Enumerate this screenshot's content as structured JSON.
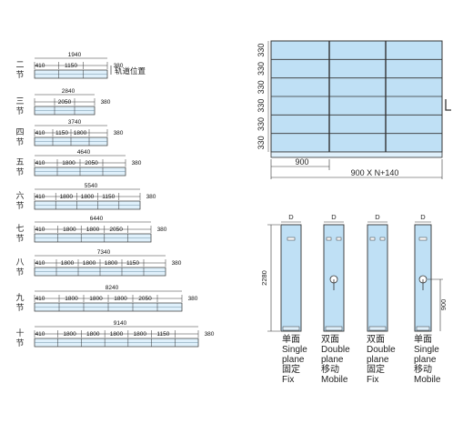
{
  "left_rail": {
    "rail_note": "轨道位置",
    "rows": [
      {
        "label": "二节",
        "total": "1940",
        "segments": [
          "410",
          "1150",
          "380"
        ]
      },
      {
        "label": "三节",
        "total": "2840",
        "segments": [
          "",
          "2050",
          "380"
        ]
      },
      {
        "label": "四节",
        "total": "3740",
        "segments": [
          "410",
          "1150",
          "1800",
          "380"
        ]
      },
      {
        "label": "五节",
        "total": "4640",
        "segments": [
          "410",
          "1800",
          "2050",
          "380"
        ]
      },
      {
        "label": "六节",
        "total": "5540",
        "segments": [
          "410",
          "1800",
          "1800",
          "1150",
          "380"
        ]
      },
      {
        "label": "七节",
        "total": "6440",
        "segments": [
          "410",
          "1800",
          "1800",
          "2050",
          "380"
        ]
      },
      {
        "label": "八节",
        "total": "7340",
        "segments": [
          "410",
          "1800",
          "1800",
          "1800",
          "1150",
          "380"
        ]
      },
      {
        "label": "九节",
        "total": "8240",
        "segments": [
          "410",
          "1800",
          "1800",
          "1800",
          "2050",
          "380"
        ]
      },
      {
        "label": "十节",
        "total": "9140",
        "segments": [
          "410",
          "1800",
          "1800",
          "1800",
          "1800",
          "1150",
          "380"
        ]
      }
    ]
  },
  "front_view": {
    "row_height_labels": [
      "330",
      "330",
      "330",
      "330",
      "330",
      "330"
    ],
    "module_width": "900",
    "overall_width": "900 X N+140"
  },
  "side_view": {
    "height": "2280",
    "handle_height": "900",
    "depth_labels": [
      "D",
      "D",
      "D",
      "D"
    ],
    "units": [
      {
        "lines": [
          "单面",
          "Single",
          "plane",
          "固定",
          "Fix"
        ]
      },
      {
        "lines": [
          "双面",
          "Double",
          "plane",
          "移动",
          "Mobile"
        ]
      },
      {
        "lines": [
          "双面",
          "Double",
          "plane",
          "固定",
          "Fix"
        ]
      },
      {
        "lines": [
          "单面",
          "Single",
          "plane",
          "移动",
          "Mobile"
        ]
      }
    ]
  },
  "colors": {
    "panel_fill": "#bfe0f5",
    "panel_light": "#dff0fb",
    "line": "#333333"
  }
}
